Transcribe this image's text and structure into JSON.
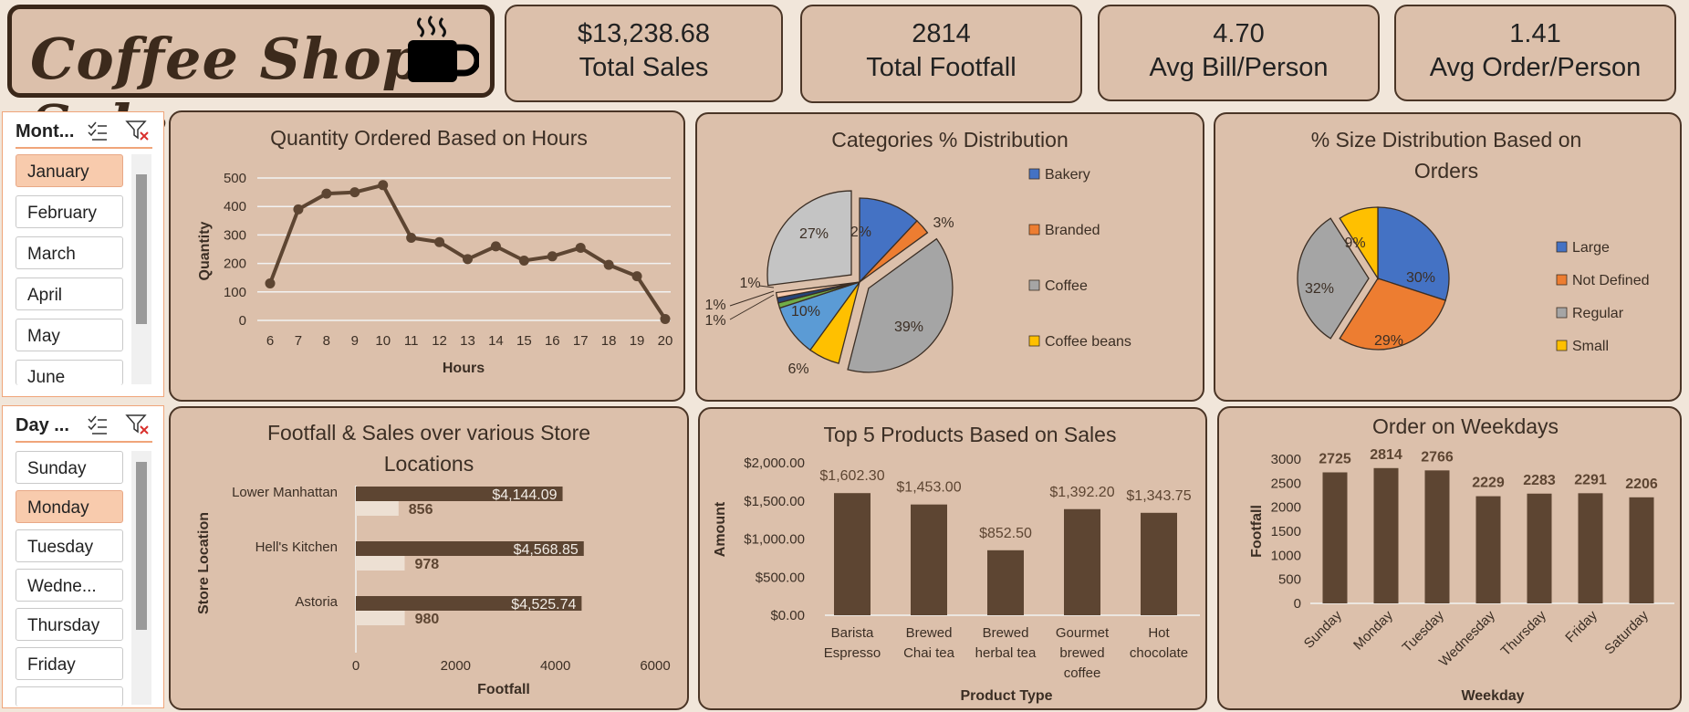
{
  "title": "Coffee Shop Sales",
  "kpis": [
    {
      "value": "$13,238.68",
      "label": "Total Sales"
    },
    {
      "value": "2814",
      "label": "Total Footfall"
    },
    {
      "value": "4.70",
      "label": "Avg Bill/Person"
    },
    {
      "value": "1.41",
      "label": "Avg Order/Person"
    }
  ],
  "month_slicer": {
    "header": "Mont...",
    "items": [
      "January",
      "February",
      "March",
      "April",
      "May",
      "June"
    ],
    "selected": "January"
  },
  "day_slicer": {
    "header": "Day ...",
    "items": [
      "Sunday",
      "Monday",
      "Tuesday",
      "Wedne...",
      "Thursday",
      "Friday"
    ],
    "selected": "Monday"
  },
  "colors": {
    "brown": "#5d4532",
    "light": "#ede0d3",
    "blue": "#4472c4",
    "orange": "#ed7d31",
    "gray": "#a5a5a5",
    "gold": "#ffc000"
  },
  "chart_data": [
    {
      "type": "line",
      "title": "Quantity Ordered Based on Hours",
      "xlabel": "Hours",
      "ylabel": "Quantity",
      "x": [
        6,
        7,
        8,
        9,
        10,
        11,
        12,
        13,
        14,
        15,
        16,
        17,
        18,
        19,
        20
      ],
      "values": [
        130,
        390,
        445,
        450,
        475,
        290,
        275,
        215,
        260,
        210,
        225,
        255,
        195,
        155,
        5
      ],
      "ylim": [
        0,
        500
      ],
      "yticks": [
        "0",
        "100",
        "200",
        "300",
        "400",
        "500"
      ]
    },
    {
      "type": "pie",
      "title": "Categories % Distribution",
      "slices": [
        {
          "name": "Bakery",
          "value": 12,
          "label": "12%"
        },
        {
          "name": "Branded",
          "value": 3,
          "label": "3%"
        },
        {
          "name": "Coffee",
          "value": 39,
          "label": "39%"
        },
        {
          "name": "Coffee beans",
          "value": 6,
          "label": "6%"
        },
        {
          "name": "",
          "value": 10,
          "label": "10%"
        },
        {
          "name": "",
          "value": 1,
          "label": "1%"
        },
        {
          "name": "",
          "value": 1,
          "label": "1%"
        },
        {
          "name": "",
          "value": 1,
          "label": "1%"
        },
        {
          "name": "",
          "value": 27,
          "label": "27%"
        }
      ],
      "legend": [
        "Bakery",
        "Branded",
        "Coffee",
        "Coffee beans"
      ]
    },
    {
      "type": "pie",
      "title": "% Size Distribution Based on Orders",
      "title_lines": [
        "% Size Distribution Based on",
        "Orders"
      ],
      "slices": [
        {
          "name": "Large",
          "value": 30,
          "label": "30%"
        },
        {
          "name": "Not Defined",
          "value": 29,
          "label": "29%"
        },
        {
          "name": "Regular",
          "value": 32,
          "label": "32%"
        },
        {
          "name": "Small",
          "value": 9,
          "label": "9%"
        }
      ],
      "legend": [
        "Large",
        "Not Defined",
        "Regular",
        "Small"
      ]
    },
    {
      "type": "bar",
      "title": "Footfall & Sales over various Store Locations",
      "title_lines": [
        "Footfall & Sales over various Store",
        "Locations"
      ],
      "xlabel": "Footfall",
      "ylabel": "Store Location",
      "categories": [
        "Lower Manhattan",
        "Hell's Kitchen",
        "Astoria"
      ],
      "series": [
        {
          "values": [
            4144.09,
            4568.85,
            4525.74
          ],
          "labels": [
            "$4,144.09",
            "$4,568.85",
            "$4,525.74"
          ]
        },
        {
          "values": [
            856,
            978,
            980
          ],
          "labels": [
            "856",
            "978",
            "980"
          ]
        }
      ],
      "xlim": [
        0,
        6000
      ],
      "xticks": [
        "0",
        "2000",
        "4000",
        "6000"
      ]
    },
    {
      "type": "bar",
      "title": "Top 5 Products Based on Sales",
      "xlabel": "Product Type",
      "ylabel": "Amount",
      "categories": [
        [
          "Barista",
          "Espresso"
        ],
        [
          "Brewed",
          "Chai tea"
        ],
        [
          "Brewed",
          "herbal tea"
        ],
        [
          "Gourmet",
          "brewed",
          "coffee"
        ],
        [
          "Hot",
          "chocolate"
        ]
      ],
      "values": [
        1602.3,
        1453.0,
        852.5,
        1392.2,
        1343.75
      ],
      "labels": [
        "$1,602.30",
        "$1,453.00",
        "$852.50",
        "$1,392.20",
        "$1,343.75"
      ],
      "ylim": [
        0,
        2000
      ],
      "yticks": [
        "$0.00",
        "$500.00",
        "$1,000.00",
        "$1,500.00",
        "$2,000.00"
      ]
    },
    {
      "type": "bar",
      "title": "Order on Weekdays",
      "xlabel": "Weekday",
      "ylabel": "Footfall",
      "categories": [
        "Sunday",
        "Monday",
        "Tuesday",
        "Wednesday",
        "Thursday",
        "Friday",
        "Saturday"
      ],
      "values": [
        2725,
        2814,
        2766,
        2229,
        2283,
        2291,
        2206
      ],
      "labels": [
        "2725",
        "2814",
        "2766",
        "2229",
        "2283",
        "2291",
        "2206"
      ],
      "ylim": [
        0,
        3000
      ],
      "yticks": [
        "0",
        "500",
        "1000",
        "1500",
        "2000",
        "2500",
        "3000"
      ]
    }
  ]
}
